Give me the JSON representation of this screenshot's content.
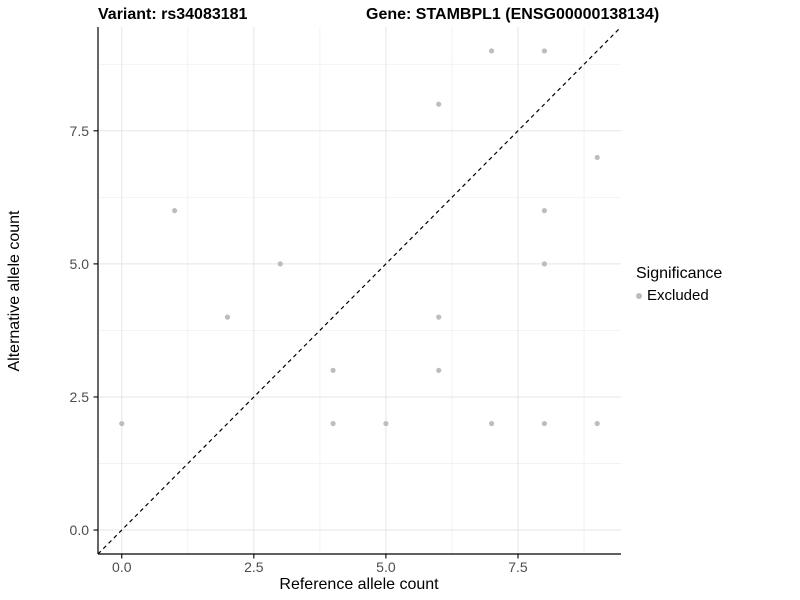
{
  "header": {
    "variant": "Variant: rs34083181",
    "gene": "Gene: STAMBPL1 (ENSG00000138134)"
  },
  "chart_data": {
    "type": "scatter",
    "title": "Variant: rs34083181   Gene: STAMBPL1 (ENSG00000138134)",
    "xlabel": "Reference allele count",
    "ylabel": "Alternative allele count",
    "xlim": [
      -0.45,
      9.45
    ],
    "ylim": [
      -0.45,
      9.45
    ],
    "x_ticks": [
      0,
      2.5,
      5,
      7.5
    ],
    "x_tick_labels": [
      "0.0",
      "2.5",
      "5.0",
      "7.5"
    ],
    "y_ticks": [
      0,
      2.5,
      5,
      7.5
    ],
    "y_tick_labels": [
      "0.0",
      "2.5",
      "5.0",
      "7.5"
    ],
    "x_minor_ticks": [
      1.25,
      3.75,
      6.25,
      8.75
    ],
    "y_minor_ticks": [
      1.25,
      3.75,
      6.25,
      8.75
    ],
    "grid": true,
    "series": [
      {
        "name": "Excluded",
        "color": "#bdbdbd",
        "points": [
          [
            0,
            2
          ],
          [
            1,
            6
          ],
          [
            2,
            4
          ],
          [
            3,
            5
          ],
          [
            4,
            2
          ],
          [
            4,
            3
          ],
          [
            5,
            2
          ],
          [
            6,
            3
          ],
          [
            6,
            4
          ],
          [
            6,
            8
          ],
          [
            7,
            2
          ],
          [
            7,
            9
          ],
          [
            8,
            2
          ],
          [
            8,
            5
          ],
          [
            8,
            6
          ],
          [
            8,
            9
          ],
          [
            9,
            2
          ],
          [
            9,
            7
          ]
        ]
      }
    ],
    "reference_line": {
      "kind": "identity y=x",
      "style": "dashed",
      "color": "#000000"
    },
    "legend": {
      "title": "Significance",
      "position": "right",
      "entries": [
        {
          "label": "Excluded",
          "color": "#bdbdbd"
        }
      ]
    },
    "colors": {
      "point": "#bdbdbd",
      "grid_major": "#e5e5e5",
      "grid_minor": "#f2f2f2",
      "axis_line": "#000000",
      "tick_label": "#4d4d4d",
      "background": "#ffffff"
    }
  }
}
